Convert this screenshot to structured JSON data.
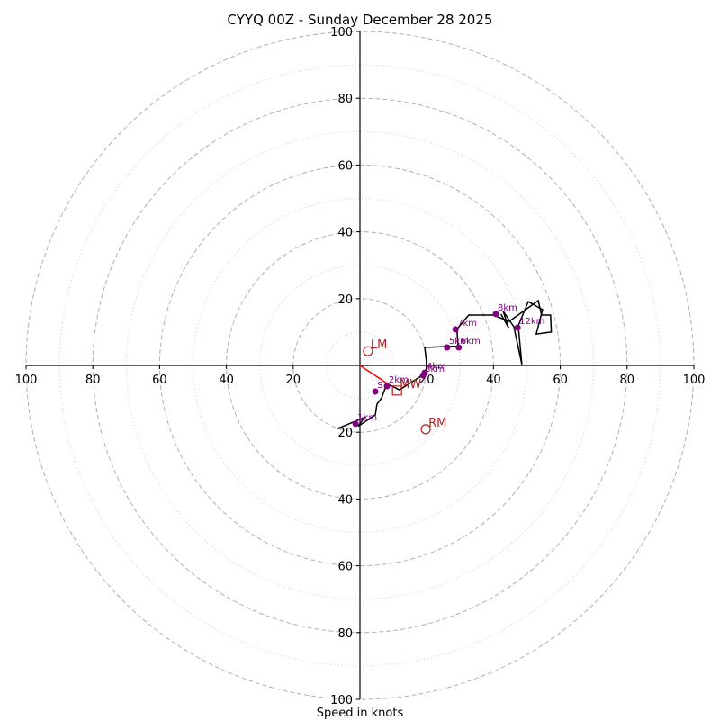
{
  "chart_data": {
    "type": "scatter",
    "subtype": "hodograph",
    "title": "CYYQ 00Z - Sunday December 28 2025",
    "xlabel": "Speed in knots",
    "ylabel": "",
    "range_knots": 100,
    "rings_major": [
      20,
      40,
      60,
      80,
      100
    ],
    "rings_minor": [
      10,
      30,
      50,
      70,
      90
    ],
    "x_tick_labels": [
      "100",
      "80",
      "60",
      "40",
      "20",
      "20",
      "40",
      "60",
      "80",
      "100"
    ],
    "x_tick_values": [
      -100,
      -80,
      -60,
      -40,
      -20,
      20,
      40,
      60,
      80,
      100
    ],
    "y_tick_labels": [
      "100",
      "80",
      "60",
      "40",
      "20",
      "20",
      "40",
      "60",
      "80",
      "100"
    ],
    "y_tick_values": [
      100,
      80,
      60,
      40,
      20,
      -20,
      -40,
      -60,
      -80,
      -100
    ],
    "grid": true,
    "colors": {
      "trace": "#000000",
      "height_markers": "#800080",
      "storm_motion": "#b22222",
      "shear_vector": "#ff0000",
      "grid": "#b0b0b0"
    },
    "trace": {
      "name": "wind profile",
      "u": [
        -6.7,
        1.3,
        -0.5,
        4.6,
        5.1,
        6.5,
        7.5,
        8.6,
        11.8,
        18.3,
        19.9,
        19.9,
        19.4,
        26.7,
        29.4,
        29.1,
        29.4,
        32.6,
        39.9,
        44.7,
        53.4,
        54.4,
        57.1,
        57.3,
        52.8,
        54.7,
        50.4,
        47.4,
        48.5,
        46.1,
        42.9,
        44.5,
        42.2
      ],
      "v": [
        -18.9,
        -15.6,
        -18.2,
        -14.8,
        -11.6,
        -9.7,
        -7.0,
        -5.7,
        -7.3,
        -3.2,
        -1.1,
        1.3,
        5.4,
        5.7,
        5.7,
        9.7,
        11.3,
        15.1,
        15.1,
        13.2,
        19.4,
        15.1,
        15.1,
        10.0,
        9.4,
        16.7,
        19.1,
        11.9,
        0.3,
        11.6,
        16.2,
        11.3,
        15.4
      ]
    },
    "height_markers": [
      {
        "label": "1km",
        "u": -1.3,
        "v": -17.5
      },
      {
        "label": "2km",
        "u": 8.1,
        "v": -6.2
      },
      {
        "label": "3km",
        "u": 18.9,
        "v": -3.0
      },
      {
        "label": "4km",
        "u": 19.4,
        "v": -2.2
      },
      {
        "label": "5km",
        "u": 26.1,
        "v": 5.4
      },
      {
        "label": "6km",
        "u": 29.6,
        "v": 5.4
      },
      {
        "label": "7km",
        "u": 28.6,
        "v": 10.8
      },
      {
        "label": "8km",
        "u": 40.7,
        "v": 15.4
      },
      {
        "label": "12km",
        "u": 47.2,
        "v": 11.3
      },
      {
        "label": "S",
        "u": 4.6,
        "v": -7.8
      }
    ],
    "storm_motion": [
      {
        "label": "LM",
        "marker": "circle",
        "u": 2.4,
        "v": 4.3
      },
      {
        "label": "RM",
        "marker": "circle",
        "u": 19.7,
        "v": -19.1
      },
      {
        "label": "MW",
        "marker": "square",
        "u": 11.1,
        "v": -7.5
      }
    ],
    "shear_vector": {
      "u0": 0,
      "v0": 0,
      "u1": 8.6,
      "v1": -5.7
    }
  }
}
